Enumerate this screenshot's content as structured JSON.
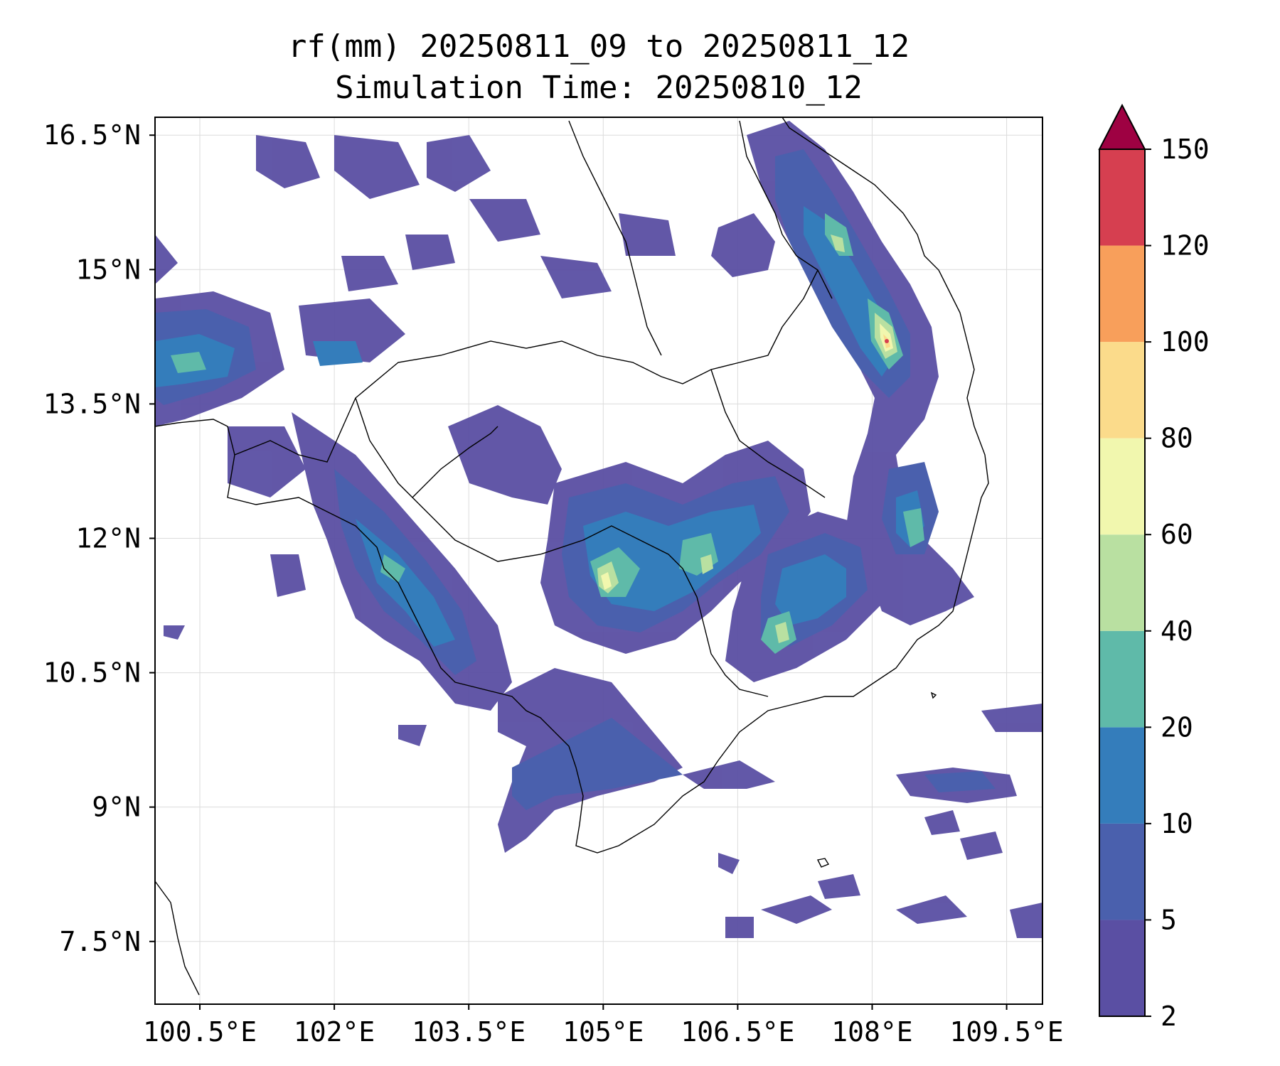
{
  "title": {
    "line1": "rf(mm) 20250811_09 to 20250811_12",
    "line2": "Simulation Time: 20250810_12"
  },
  "map": {
    "lon_range": [
      100.0,
      109.9
    ],
    "lat_range": [
      6.8,
      16.7
    ],
    "lon_ticks": [
      {
        "value": 100.5,
        "label": "100.5°E"
      },
      {
        "value": 102.0,
        "label": "102°E"
      },
      {
        "value": 103.5,
        "label": "103.5°E"
      },
      {
        "value": 105.0,
        "label": "105°E"
      },
      {
        "value": 106.5,
        "label": "106.5°E"
      },
      {
        "value": 108.0,
        "label": "108°E"
      },
      {
        "value": 109.5,
        "label": "109.5°E"
      }
    ],
    "lat_ticks": [
      {
        "value": 16.5,
        "label": "16.5°N"
      },
      {
        "value": 15.0,
        "label": "15°N"
      },
      {
        "value": 13.5,
        "label": "13.5°N"
      },
      {
        "value": 12.0,
        "label": "12°N"
      },
      {
        "value": 10.5,
        "label": "10.5°N"
      },
      {
        "value": 9.0,
        "label": "9°N"
      },
      {
        "value": 7.5,
        "label": "7.5°N"
      }
    ],
    "gridlines": true
  },
  "colorbar": {
    "levels": [
      2,
      5,
      10,
      20,
      40,
      60,
      80,
      100,
      120,
      150
    ],
    "colors": [
      "#5a4fa3",
      "#4a60ad",
      "#347dbb",
      "#5fbaa9",
      "#b9e0a1",
      "#f1f7ae",
      "#fbdb8b",
      "#f89f5b",
      "#d63f50"
    ],
    "extend_color": "#9e0142",
    "extend": "max"
  },
  "colors": {
    "rain_core_light": "#f1f7ae",
    "coastline": "#000000"
  }
}
